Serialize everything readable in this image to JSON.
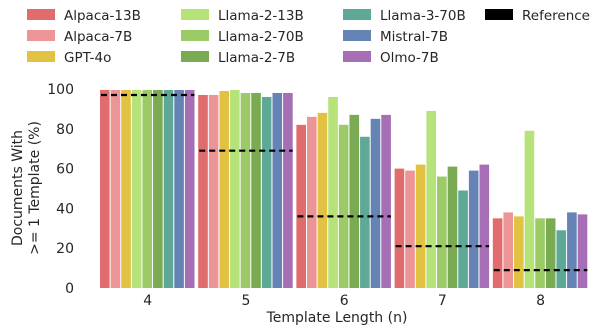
{
  "chart_data": {
    "type": "bar",
    "xlabel": "Template Length (n)",
    "ylabel_lines": [
      "Documents With",
      ">= 1 Template (%)"
    ],
    "categories": [
      "4",
      "5",
      "6",
      "7",
      "8"
    ],
    "ylim": [
      0,
      100
    ],
    "yticks": [
      0,
      20,
      40,
      60,
      80,
      100
    ],
    "grid": false,
    "legend_position": "top",
    "series": [
      {
        "name": "Alpaca-13B",
        "color": "#e06c6e",
        "values": [
          99.5,
          97,
          82,
          60,
          35
        ]
      },
      {
        "name": "Alpaca-7B",
        "color": "#ec9596",
        "values": [
          99.5,
          97,
          86,
          59,
          38
        ]
      },
      {
        "name": "GPT-4o",
        "color": "#e2c243",
        "values": [
          99.5,
          99,
          88,
          62,
          36
        ]
      },
      {
        "name": "Llama-2-13B",
        "color": "#b6e27a",
        "values": [
          99.5,
          99.5,
          96,
          89,
          79
        ]
      },
      {
        "name": "Llama-2-70B",
        "color": "#9cca67",
        "values": [
          99.5,
          98,
          82,
          56,
          35
        ]
      },
      {
        "name": "Llama-2-7B",
        "color": "#7aab52",
        "values": [
          99.5,
          98,
          87,
          61,
          35
        ]
      },
      {
        "name": "Llama-3-70B",
        "color": "#5ea898",
        "values": [
          99.5,
          96,
          76,
          49,
          29
        ]
      },
      {
        "name": "Mistral-7B",
        "color": "#6583b5",
        "values": [
          99.5,
          98,
          85,
          59,
          38
        ]
      },
      {
        "name": "Olmo-7B",
        "color": "#a66fb5",
        "values": [
          99.5,
          98,
          87,
          62,
          37
        ]
      }
    ],
    "reference": {
      "name": "Reference",
      "color": "#000000",
      "values": [
        97,
        69,
        36,
        21,
        9
      ]
    }
  }
}
